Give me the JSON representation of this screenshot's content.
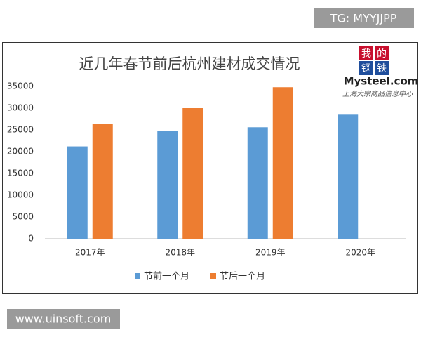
{
  "watermark_top": "TG: MYYJJPP",
  "watermark_bottom": "www.uinsoft.com",
  "logo": {
    "mark": [
      "我",
      "的",
      "钢",
      "铁"
    ],
    "brand": "Mysteel.com",
    "tagline": "上海大宗商品信息中心"
  },
  "chart_data": {
    "type": "bar",
    "title": "近几年春节前后杭州建材成交情况",
    "categories": [
      "2017年",
      "2018年",
      "2019年",
      "2020年"
    ],
    "series": [
      {
        "name": "节前一个月",
        "color": "#5b9bd5",
        "values": [
          21200,
          24800,
          25600,
          28500
        ]
      },
      {
        "name": "节后一个月",
        "color": "#ed7d31",
        "values": [
          26300,
          30000,
          34800,
          null
        ]
      }
    ],
    "ylim": [
      0,
      35000
    ],
    "yticks": [
      0,
      5000,
      10000,
      15000,
      20000,
      25000,
      30000,
      35000
    ],
    "grid": false,
    "legend": "bottom"
  }
}
